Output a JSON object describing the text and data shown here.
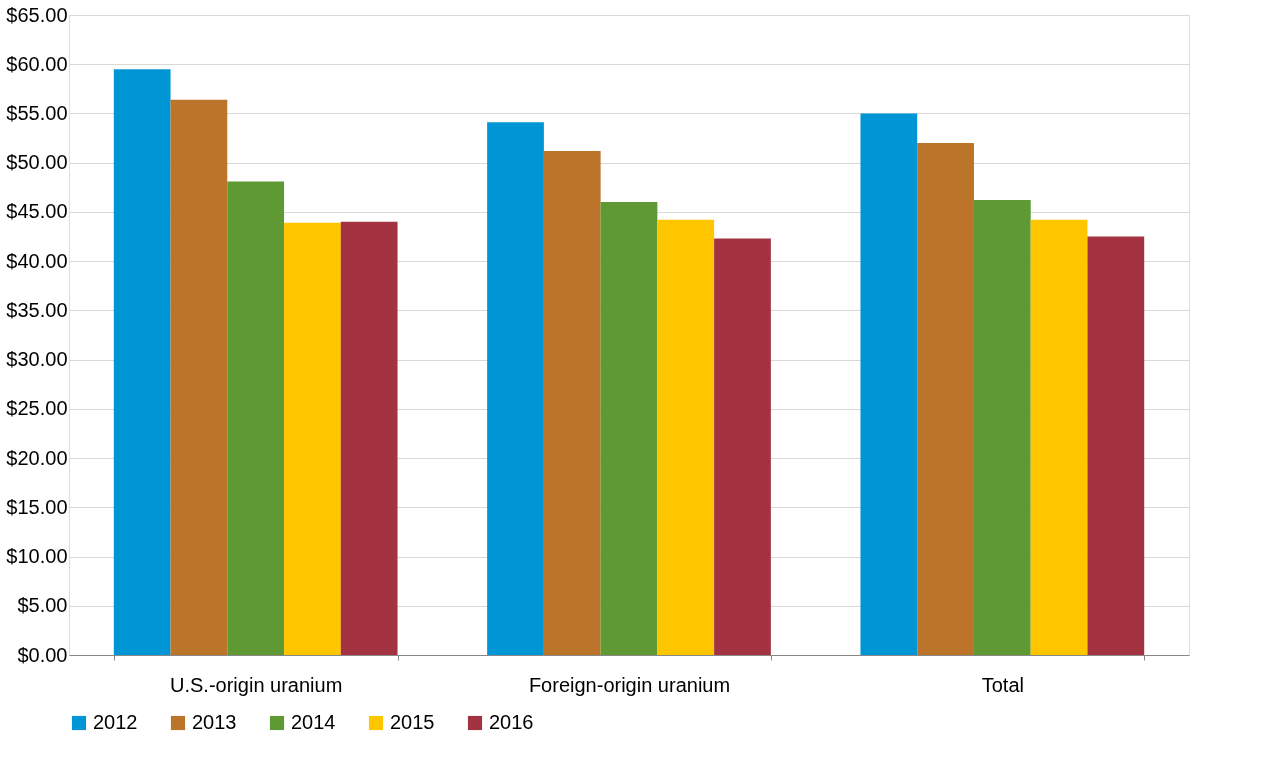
{
  "chart_data": {
    "type": "bar",
    "categories": [
      "U.S.-origin uranium",
      "Foreign-origin uranium",
      "Total"
    ],
    "series": [
      {
        "name": "2012",
        "color": "#0096d6",
        "values": [
          59.5,
          54.1,
          55.0
        ]
      },
      {
        "name": "2013",
        "color": "#bc742b",
        "values": [
          56.4,
          51.2,
          52.0
        ]
      },
      {
        "name": "2014",
        "color": "#5f9933",
        "values": [
          48.1,
          46.0,
          46.2
        ]
      },
      {
        "name": "2015",
        "color": "#ffc600",
        "values": [
          43.9,
          44.2,
          44.2
        ]
      },
      {
        "name": "2016",
        "color": "#a33340",
        "values": [
          44.0,
          42.3,
          42.5
        ]
      }
    ],
    "ylim": [
      0,
      65
    ],
    "yticks": [
      {
        "value": 0,
        "label": "$0.00"
      },
      {
        "value": 5,
        "label": "$5.00"
      },
      {
        "value": 10,
        "label": "$10.00"
      },
      {
        "value": 15,
        "label": "$15.00"
      },
      {
        "value": 20,
        "label": "$20.00"
      },
      {
        "value": 25,
        "label": "$25.00"
      },
      {
        "value": 30,
        "label": "$30.00"
      },
      {
        "value": 35,
        "label": "$35.00"
      },
      {
        "value": 40,
        "label": "$40.00"
      },
      {
        "value": 45,
        "label": "$45.00"
      },
      {
        "value": 50,
        "label": "$50.00"
      },
      {
        "value": 55,
        "label": "$55.00"
      },
      {
        "value": 60,
        "label": "$60.00"
      },
      {
        "value": 65,
        "label": "$65.00"
      }
    ],
    "grid": "y",
    "legend": "bottom"
  }
}
